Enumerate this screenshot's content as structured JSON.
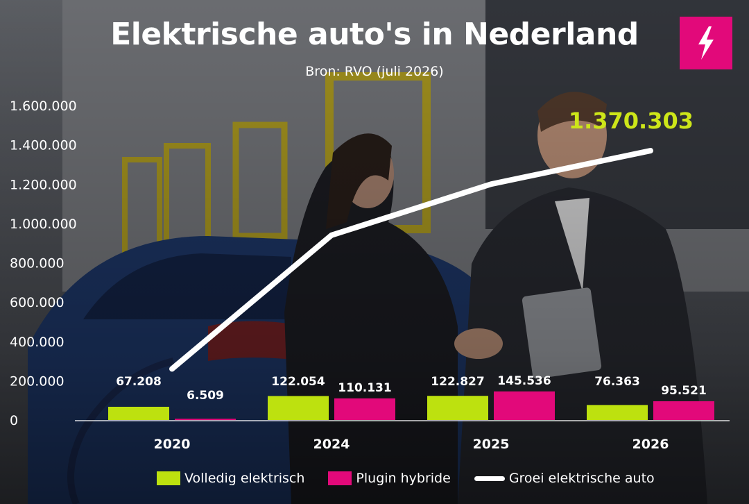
{
  "header": {
    "title": "Elektrische auto's in Nederland",
    "subtitle": "Bron: RVO (juli 2026)"
  },
  "brand": {
    "logo_icon": "lightning-bolt-icon",
    "logo_color": "#e2097a"
  },
  "colors": {
    "bev": "#bde10f",
    "phev": "#e2097a",
    "growth": "#ffffff",
    "highlight": "#cde619"
  },
  "chart_data": {
    "type": "bar",
    "title": "Elektrische auto's in Nederland",
    "subtitle": "Bron: RVO (juli 2026)",
    "categories": [
      "2020",
      "2024",
      "2025",
      "2026"
    ],
    "series": [
      {
        "name": "Volledig elektrisch",
        "type": "bar",
        "values": [
          67208,
          122054,
          122827,
          76363
        ],
        "labels": [
          "67.208",
          "122.054",
          "122.827",
          "76.363"
        ]
      },
      {
        "name": "Plugin hybride",
        "type": "bar",
        "values": [
          6509,
          110131,
          145536,
          95521
        ],
        "labels": [
          "6.509",
          "110.131",
          "145.536",
          "95.521"
        ]
      },
      {
        "name": "Groei elektrische auto",
        "type": "line",
        "values": [
          260000,
          940000,
          1200000,
          1370303
        ]
      }
    ],
    "annotation": "1.370.303",
    "ylim": [
      0,
      1600000
    ],
    "yticks": [
      0,
      200000,
      400000,
      600000,
      800000,
      1000000,
      1200000,
      1400000,
      1600000
    ],
    "ytick_labels": [
      "0",
      "200.000",
      "400.000",
      "600.000",
      "800.000",
      "1.000.000",
      "1.200.000",
      "1.400.000",
      "1.600.000"
    ],
    "xlabel": "",
    "ylabel": "",
    "grid": false,
    "legend_position": "bottom"
  }
}
